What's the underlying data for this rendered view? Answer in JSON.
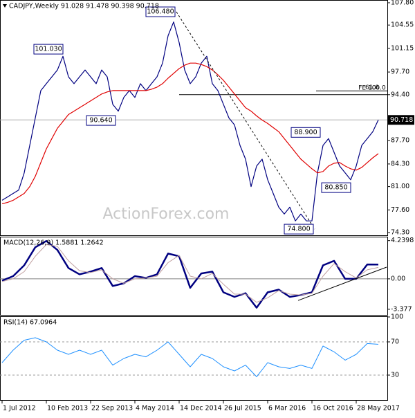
{
  "chart_data": [
    {
      "type": "line",
      "title": "CADJPY,Weekly  91.028 91.478 90.398 90.718",
      "watermark": "ActionForex.com",
      "xlim": [
        -1.5,
        278.5
      ],
      "ylim": [
        73.9,
        108.1
      ],
      "yticks": [
        {
          "value": 107.8,
          "label": "107.80"
        },
        104.55,
        101.15,
        {
          "value": 97.7,
          "label": "97.70"
        },
        {
          "value": 94.4,
          "label": "94.40"
        },
        {
          "value": 87.7,
          "label": "87.70"
        },
        {
          "value": 84.3,
          "label": "84.30"
        },
        {
          "value": 81.0,
          "label": "81.00"
        },
        {
          "value": 77.6,
          "label": "77.60"
        },
        {
          "value": 74.3,
          "label": "74.30"
        }
      ],
      "current_price": 90.718,
      "x": [
        0,
        4,
        8,
        12,
        16,
        20,
        24,
        28,
        32,
        36,
        40,
        44,
        48,
        52,
        56,
        60,
        64,
        68,
        72,
        76,
        80,
        84,
        88,
        92,
        96,
        100,
        104,
        108,
        112,
        116,
        120,
        124,
        128,
        132,
        136,
        140,
        144,
        148,
        152,
        156,
        160,
        164,
        168,
        172,
        176,
        180,
        184,
        188,
        192,
        196,
        200,
        204,
        208,
        212,
        216,
        220,
        224,
        228,
        232,
        236,
        240,
        244,
        248,
        252,
        256,
        260,
        264,
        268,
        272
      ],
      "series": [
        {
          "color": "#000080",
          "values": [
            79,
            79.5,
            80,
            80.5,
            83,
            87,
            91,
            95,
            96,
            97,
            98,
            100,
            97,
            96,
            97,
            98,
            97,
            96,
            98,
            97,
            93,
            92,
            94,
            95,
            94,
            96,
            95,
            96,
            97,
            99,
            103,
            105,
            102,
            98,
            96,
            97,
            99,
            100,
            96,
            95,
            93,
            91,
            90,
            87,
            85,
            81,
            84,
            85,
            82,
            80,
            78,
            77,
            78,
            76,
            77,
            76,
            76,
            83,
            87,
            88,
            86,
            84,
            83,
            82,
            84,
            87,
            88,
            89,
            90.718
          ]
        },
        {
          "color": "#e00000",
          "values": [
            78.5,
            78.7,
            79,
            79.5,
            80,
            81,
            82.5,
            84.5,
            86.5,
            88,
            89.5,
            90.5,
            91.5,
            92,
            92.5,
            93,
            93.5,
            94,
            94.5,
            94.8,
            95,
            95,
            95,
            95,
            95,
            95,
            95,
            95.2,
            95.5,
            96,
            96.8,
            97.5,
            98.2,
            98.7,
            99,
            99,
            98.8,
            98.5,
            98,
            97.3,
            96.5,
            95.5,
            94.5,
            93.5,
            92.5,
            92,
            91.3,
            90.7,
            90.2,
            89.6,
            89,
            88,
            87,
            86,
            85,
            84.3,
            83.6,
            83,
            83.2,
            84,
            84.4,
            84.5,
            84,
            83.6,
            83.4,
            83.8,
            84.5,
            85.2,
            85.8
          ]
        }
      ],
      "annotations": [
        {
          "label": "106.480",
          "value": 106.48,
          "x": 126
        },
        {
          "label": "101.030",
          "value": 101.03,
          "x": 45
        },
        {
          "label": "90.640",
          "value": 90.64,
          "x": 83
        },
        {
          "label": "88.900",
          "value": 88.9,
          "x": 231
        },
        {
          "label": "80.850",
          "value": 80.85,
          "x": 253
        },
        {
          "label": "74.800",
          "value": 74.8,
          "x": 226
        }
      ],
      "levels": [
        {
          "label": "FE 100.0",
          "value": 94.4,
          "x": 128
        },
        {
          "label": "61.8",
          "value": 94.95,
          "x": 227
        }
      ]
    },
    {
      "type": "line",
      "title": "MACD(12,26,9) 1.5881 1.2642",
      "xlim": [
        -1.5,
        278.5
      ],
      "ylim": [
        -4.0,
        4.6
      ],
      "yticks": [
        4.2398,
        {
          "value": 0,
          "label": "0.00"
        },
        -3.377
      ],
      "levels": [
        0
      ],
      "x": [
        0,
        8,
        16,
        24,
        32,
        40,
        48,
        56,
        64,
        72,
        80,
        88,
        96,
        104,
        112,
        120,
        128,
        136,
        144,
        152,
        160,
        168,
        176,
        184,
        192,
        200,
        208,
        216,
        224,
        232,
        240,
        248,
        256,
        264,
        272
      ],
      "series": [
        {
          "color": "#000080",
          "width": 2.5,
          "values": [
            -0.2,
            0.3,
            1.5,
            3.5,
            4.2,
            3.2,
            1.2,
            0.5,
            0.8,
            1.2,
            -0.8,
            -0.5,
            0.3,
            0.1,
            0.5,
            2.8,
            2.5,
            -1.0,
            0.6,
            0.8,
            -1.5,
            -2.0,
            -1.6,
            -3.2,
            -1.5,
            -1.2,
            -2.0,
            -1.8,
            -1.5,
            1.5,
            2.0,
            0.0,
            0.0,
            1.6,
            1.5881
          ]
        },
        {
          "color": "#c0a0a0",
          "width": 1,
          "values": [
            -0.3,
            0,
            0.8,
            2.5,
            3.8,
            3.6,
            2.0,
            0.9,
            0.7,
            1.0,
            0.0,
            -0.5,
            0.0,
            0.1,
            0.3,
            1.8,
            2.6,
            0.3,
            0.0,
            0.6,
            -0.6,
            -1.7,
            -1.7,
            -2.6,
            -2.1,
            -1.3,
            -1.7,
            -1.8,
            -1.6,
            0.3,
            1.7,
            0.8,
            0.1,
            1.0,
            1.2642
          ]
        }
      ],
      "trendline": {
        "x": [
          214,
          278
        ],
        "values": [
          -2.4,
          1.3
        ]
      }
    },
    {
      "type": "line",
      "title": "RSI(14) 67.0964",
      "xlim": [
        -1.5,
        278.5
      ],
      "ylim": [
        0,
        100
      ],
      "yticks": [
        100,
        70,
        30
      ],
      "levels": [
        70,
        30
      ],
      "xticks": [
        {
          "value": 0,
          "label": "1 Jul 2012"
        },
        {
          "value": 32,
          "label": "10 Feb 2013"
        },
        {
          "value": 64,
          "label": "22 Sep 2013"
        },
        {
          "value": 96,
          "label": "4 May 2014"
        },
        {
          "value": 128,
          "label": "14 Dec 2014"
        },
        {
          "value": 160,
          "label": "26 Jul 2015"
        },
        {
          "value": 192,
          "label": "6 Mar 2016"
        },
        {
          "value": 224,
          "label": "16 Oct 2016"
        },
        {
          "value": 256,
          "label": "28 May 2017"
        }
      ],
      "x": [
        0,
        8,
        16,
        24,
        32,
        40,
        48,
        56,
        64,
        72,
        80,
        88,
        96,
        104,
        112,
        120,
        128,
        136,
        144,
        152,
        160,
        168,
        176,
        184,
        192,
        200,
        208,
        216,
        224,
        232,
        240,
        248,
        256,
        264,
        272
      ],
      "series": [
        {
          "color": "#1e90ff",
          "width": 1,
          "values": [
            45,
            60,
            72,
            75,
            70,
            60,
            55,
            60,
            55,
            60,
            42,
            50,
            55,
            52,
            60,
            70,
            55,
            40,
            55,
            50,
            40,
            35,
            42,
            28,
            45,
            40,
            38,
            42,
            38,
            65,
            58,
            48,
            55,
            68,
            67.0964
          ]
        }
      ]
    }
  ]
}
